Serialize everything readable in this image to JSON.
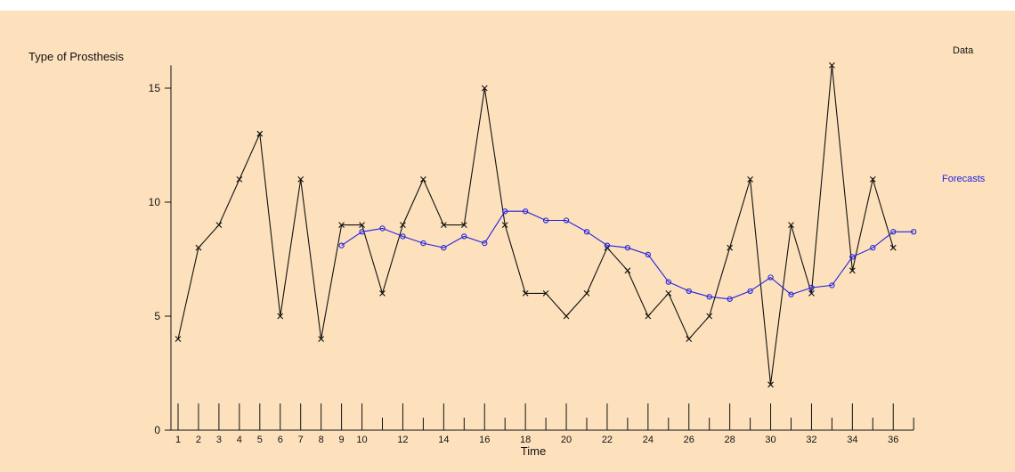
{
  "chart_data": {
    "type": "line",
    "ylabel": "Type of Prosthesis",
    "xlabel": "Time",
    "ylim": [
      0,
      16
    ],
    "xlim": [
      0.5,
      37
    ],
    "yticks": [
      0,
      5,
      10,
      15
    ],
    "xtick_labels": [
      1,
      2,
      3,
      4,
      5,
      6,
      7,
      8,
      9,
      10,
      12,
      14,
      16,
      18,
      20,
      22,
      24,
      26,
      28,
      30,
      32,
      34,
      36
    ],
    "grid": false,
    "legend": [
      {
        "name": "Data",
        "color": "#111111"
      },
      {
        "name": "Forecasts",
        "color": "#2222dd"
      }
    ],
    "series": [
      {
        "name": "Data",
        "color": "#111111",
        "marker": "x",
        "x": [
          1,
          2,
          3,
          4,
          5,
          6,
          7,
          8,
          9,
          10,
          11,
          12,
          13,
          14,
          15,
          16,
          17,
          18,
          19,
          20,
          21,
          22,
          23,
          24,
          25,
          26,
          27,
          28,
          29,
          30,
          31,
          32,
          33,
          34,
          35,
          36
        ],
        "y": [
          4,
          8,
          9,
          11,
          13,
          5,
          11,
          4,
          9,
          9,
          6,
          9,
          11,
          9,
          9,
          15,
          9,
          6,
          6,
          5,
          6,
          8,
          7,
          5,
          6,
          4,
          5,
          8,
          11,
          2,
          9,
          6,
          16,
          7,
          11,
          8
        ]
      },
      {
        "name": "Forecasts",
        "color": "#2222dd",
        "marker": "o",
        "x": [
          9,
          10,
          11,
          12,
          13,
          14,
          15,
          16,
          17,
          18,
          19,
          20,
          21,
          22,
          23,
          24,
          25,
          26,
          27,
          28,
          29,
          30,
          31,
          32,
          33,
          34,
          35,
          36,
          37
        ],
        "y": [
          8.1,
          8.7,
          8.85,
          8.5,
          8.2,
          8.0,
          8.5,
          8.2,
          9.6,
          9.6,
          9.2,
          9.2,
          8.7,
          8.1,
          8.0,
          7.7,
          6.5,
          6.1,
          5.85,
          5.75,
          6.1,
          6.7,
          5.95,
          6.25,
          6.35,
          7.6,
          8.0,
          8.7,
          8.7
        ]
      }
    ]
  }
}
